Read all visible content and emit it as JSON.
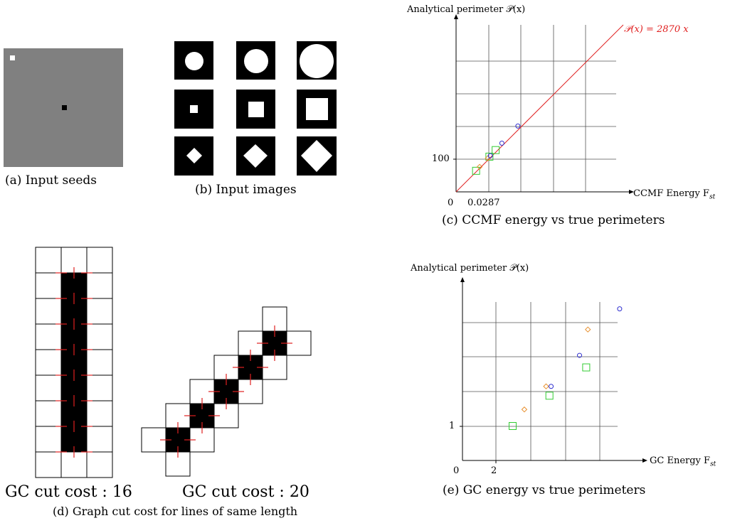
{
  "panel_a": {
    "caption": "(a) Input seeds"
  },
  "panel_b": {
    "caption": "(b) Input images",
    "shapes": [
      [
        "circle",
        "circle",
        "circle"
      ],
      [
        "square",
        "square",
        "square"
      ],
      [
        "diamond",
        "diamond",
        "diamond"
      ]
    ]
  },
  "panel_c": {
    "caption": "(c) CCMF energy vs true perimeters",
    "y_axis_label": "Analytical perimeter  𝒫(x)",
    "x_axis_label": "CCMF Energy F",
    "x_axis_sub": "st",
    "fit_label": "𝒫(x) = 2870 x",
    "tick_y": "100",
    "tick_x0": "0",
    "tick_x1": "0.0287"
  },
  "panel_d": {
    "caption": "(d) Graph cut cost for lines of same length",
    "left_cost": "GC cut cost : 16",
    "right_cost": "GC cut cost : 20"
  },
  "panel_e": {
    "caption": "(e) GC energy vs true perimeters",
    "y_axis_label": "Analytical perimeter  𝒫(x)",
    "x_axis_label": "GC Energy F",
    "x_axis_sub": "st",
    "tick_y": "1",
    "tick_x0": "0",
    "tick_x1": "2"
  },
  "chart_data": [
    {
      "type": "scatter",
      "title": "(c) CCMF energy vs true perimeters",
      "xlabel": "CCMF Energy F_st",
      "ylabel": "Analytical perimeter P(x)",
      "x_ticks": [
        "0",
        "0.0287"
      ],
      "y_ticks": [
        "100"
      ],
      "fit_line": "P(x) = 2870 x",
      "series": [
        {
          "marker": "square",
          "color": "#33cc33",
          "x": [
            0.0225,
            0.0375,
            0.0445
          ],
          "y": [
            64,
            107,
            127
          ]
        },
        {
          "marker": "diamond",
          "color": "#e8902e",
          "x": [
            0.0265,
            0.0357
          ],
          "y": [
            76,
            102
          ]
        },
        {
          "marker": "circle",
          "color": "#3030d0",
          "x": [
            0.0385,
            0.0515,
            0.0695
          ],
          "y": [
            110,
            148,
            200
          ]
        }
      ],
      "colors": {
        "grid": "#555555",
        "fit": "#e02020"
      }
    },
    {
      "type": "scatter",
      "title": "(e) GC energy vs true perimeters",
      "xlabel": "GC Energy F_st",
      "ylabel": "Analytical perimeter P(x)",
      "x_ticks": [
        "0",
        "2"
      ],
      "y_ticks": [
        "1"
      ],
      "series": [
        {
          "marker": "square",
          "color": "#33cc33",
          "x": [
            3.0,
            5.2,
            7.4
          ],
          "y": [
            1.0,
            1.88,
            2.7
          ]
        },
        {
          "marker": "diamond",
          "color": "#e8902e",
          "x": [
            3.7,
            5.0,
            7.5
          ],
          "y": [
            1.48,
            2.15,
            3.8
          ]
        },
        {
          "marker": "circle",
          "color": "#3030d0",
          "x": [
            5.3,
            7.0,
            9.4
          ],
          "y": [
            2.15,
            3.05,
            4.4
          ]
        }
      ],
      "colors": {
        "grid": "#555555"
      }
    }
  ]
}
